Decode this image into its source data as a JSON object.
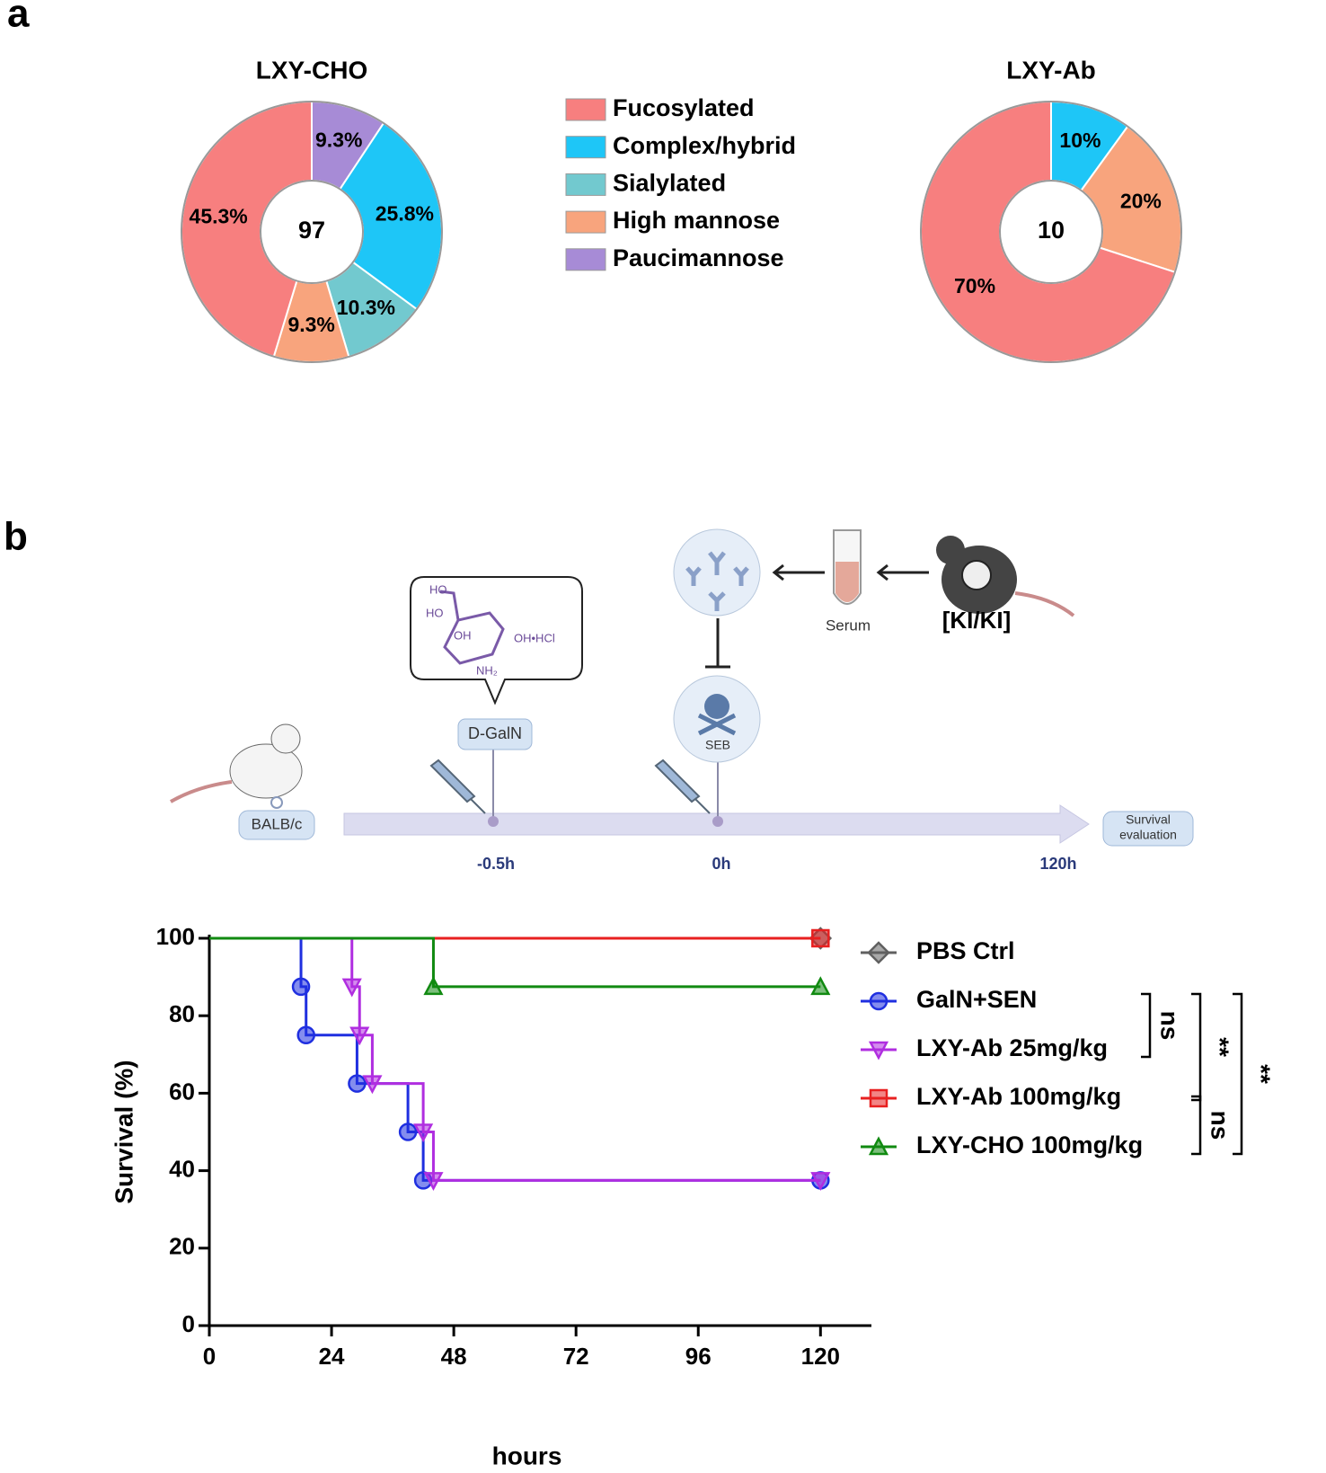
{
  "panel_labels": [
    "a",
    "b"
  ],
  "chart_data": [
    {
      "type": "pie",
      "title": "LXY-CHO",
      "total": 97,
      "categories": [
        "Paucimannose",
        "Complex/hybrid",
        "Sialylated",
        "High mannose",
        "Fucosylated"
      ],
      "values": [
        9.3,
        25.8,
        10.3,
        9.3,
        45.3
      ],
      "value_labels": [
        "9.3%",
        "25.8%",
        "10.3%",
        "9.3%",
        "45.3%"
      ],
      "colors": [
        "#a78bd6",
        "#1ec6f7",
        "#72c9cf",
        "#f8a47d",
        "#f77f7f"
      ]
    },
    {
      "type": "pie",
      "title": "LXY-Ab",
      "total": 10,
      "values": [
        10,
        20,
        70
      ],
      "value_labels": [
        "10%",
        "20%",
        "70%"
      ],
      "colors": [
        "#1ec6f7",
        "#f8a47d",
        "#f77f7f"
      ]
    },
    {
      "type": "line",
      "step": "post",
      "x_label": "hours",
      "y_label": "Survival (%)",
      "xlim": [
        0,
        130
      ],
      "xticks": [
        0,
        24,
        48,
        72,
        96,
        120
      ],
      "ylim": [
        0,
        100
      ],
      "yticks": [
        0,
        20,
        40,
        60,
        80,
        100
      ],
      "series": [
        {
          "name": "PBS Ctrl",
          "color": "#606060",
          "marker": "diamond",
          "x": [
            0,
            120
          ],
          "values": [
            100,
            100
          ]
        },
        {
          "name": "GalN+SEN",
          "color": "#1f2fe0",
          "marker": "circle",
          "x": [
            0,
            18,
            19,
            29,
            39,
            42,
            120
          ],
          "values": [
            100,
            87.5,
            75,
            62.5,
            50,
            37.5,
            37.5
          ]
        },
        {
          "name": "LXY-Ab 25mg/kg",
          "color": "#b02ee0",
          "marker": "triangle-down",
          "x": [
            0,
            28,
            29.5,
            32,
            42,
            44,
            120
          ],
          "values": [
            100,
            87.5,
            75,
            62.5,
            50,
            37.5,
            37.5
          ]
        },
        {
          "name": "LXY-Ab 100mg/kg",
          "color": "#e82020",
          "marker": "square",
          "x": [
            0,
            120
          ],
          "values": [
            100,
            100
          ]
        },
        {
          "name": "LXY-CHO 100mg/kg",
          "color": "#118a11",
          "marker": "triangle-up",
          "x": [
            0,
            44,
            120
          ],
          "values": [
            100,
            87.5,
            87.5
          ]
        }
      ],
      "annotations": [
        "ns",
        "**",
        "**",
        "ns"
      ]
    }
  ],
  "diagram": {
    "agent": "D-GalN",
    "toxin": "SEB",
    "source": "Serum",
    "genotype": "[KI/KI]",
    "strain": "BALB/c",
    "endpoint": [
      "Survival",
      "evaluation"
    ],
    "timepoints": [
      "-0.5h",
      "0h",
      "120h"
    ],
    "molecule": [
      "HO",
      "HO",
      "OH",
      "OH•HCl",
      "NH₂"
    ]
  }
}
